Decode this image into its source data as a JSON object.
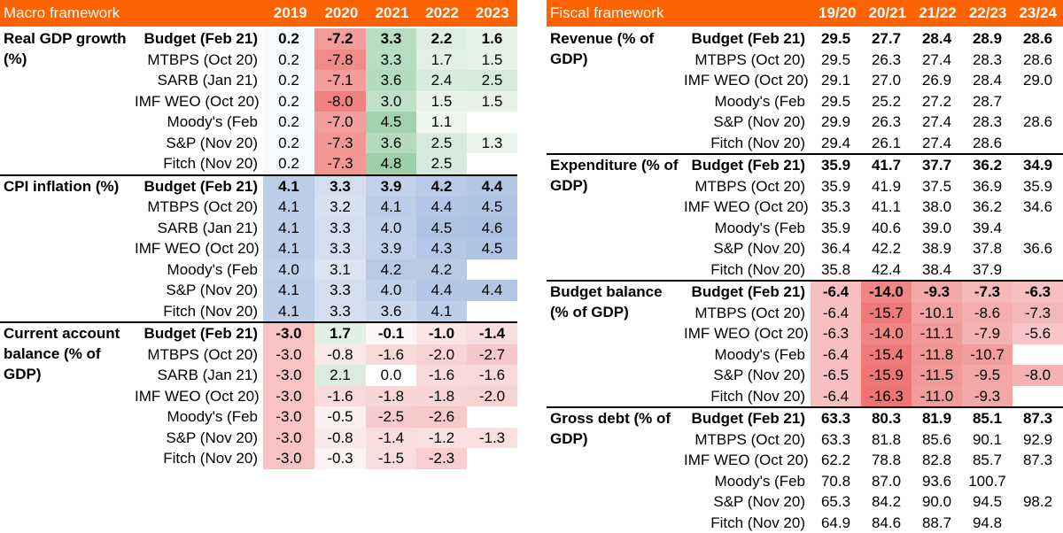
{
  "macro": {
    "title": "Macro framework",
    "years": [
      "2019",
      "2020",
      "2021",
      "2022",
      "2023"
    ],
    "sections": [
      {
        "label": "Real GDP growth (%)",
        "rows": [
          {
            "source": "Budget (Feb 21)",
            "values": [
              "0.2",
              "-7.2",
              "3.3",
              "2.2",
              "1.6"
            ],
            "colors": [
              "#f7fafd",
              "#f39a9a",
              "#b9ddc1",
              "#dbeedf",
              "#e5f2e8"
            ]
          },
          {
            "source": "MTBPS (Oct 20)",
            "values": [
              "0.2",
              "-7.8",
              "3.3",
              "1.7",
              "1.5"
            ],
            "colors": [
              "#f7fafd",
              "#f28a8a",
              "#b9ddc1",
              "#e2f1e6",
              "#e6f3e9"
            ]
          },
          {
            "source": "SARB (Jan 21)",
            "values": [
              "0.2",
              "-7.1",
              "3.6",
              "2.4",
              "2.5"
            ],
            "colors": [
              "#f7fafd",
              "#f39c9c",
              "#b4dbbd",
              "#d8ecdc",
              "#d6ebdb"
            ]
          },
          {
            "source": "IMF WEO (Oct 20)",
            "values": [
              "0.2",
              "-8.0",
              "3.0",
              "1.5",
              "1.5"
            ],
            "colors": [
              "#f7fafd",
              "#f18282",
              "#c0e1c8",
              "#e6f3e9",
              "#e6f3e9"
            ]
          },
          {
            "source": "Moody's (Feb",
            "values": [
              "0.2",
              "-7.0",
              "4.5",
              "1.1",
              ""
            ],
            "colors": [
              "#f7fafd",
              "#f39e9e",
              "#a3d3ae",
              "#edf6ef",
              "#ffffff"
            ]
          },
          {
            "source": "S&P (Nov 20)",
            "values": [
              "0.2",
              "-7.3",
              "3.6",
              "2.5",
              "1.3"
            ],
            "colors": [
              "#f7fafd",
              "#f39696",
              "#b4dbbd",
              "#d6ebdb",
              "#e9f4ec"
            ]
          },
          {
            "source": "Fitch (Nov 20)",
            "values": [
              "0.2",
              "-7.3",
              "4.8",
              "2.5",
              ""
            ],
            "colors": [
              "#f7fafd",
              "#f39696",
              "#9dd0a8",
              "#d6ebdb",
              "#ffffff"
            ]
          }
        ]
      },
      {
        "label": "CPI inflation (%)",
        "rows": [
          {
            "source": "Budget (Feb 21)",
            "values": [
              "4.1",
              "3.3",
              "3.9",
              "4.2",
              "4.4"
            ],
            "colors": [
              "#bccde8",
              "#d3def0",
              "#c2d1ea",
              "#b8cae6",
              "#b3c6e5"
            ]
          },
          {
            "source": "MTBPS (Oct 20)",
            "values": [
              "4.1",
              "3.2",
              "4.1",
              "4.4",
              "4.5"
            ],
            "colors": [
              "#bccde8",
              "#d6e1f1",
              "#bccde8",
              "#b3c6e5",
              "#afc3e3"
            ]
          },
          {
            "source": "SARB (Jan 21)",
            "values": [
              "4.1",
              "3.3",
              "4.0",
              "4.5",
              "4.6"
            ],
            "colors": [
              "#bccde8",
              "#d3def0",
              "#bfd0e9",
              "#afc3e3",
              "#abc0e2"
            ]
          },
          {
            "source": "IMF WEO (Oct 20)",
            "values": [
              "4.1",
              "3.3",
              "3.9",
              "4.3",
              "4.5"
            ],
            "colors": [
              "#bccde8",
              "#d3def0",
              "#c2d1ea",
              "#b5c8e6",
              "#afc3e3"
            ]
          },
          {
            "source": "Moody's (Feb",
            "values": [
              "4.0",
              "3.1",
              "4.2",
              "4.2",
              ""
            ],
            "colors": [
              "#bfd0e9",
              "#dae4f2",
              "#b8cae6",
              "#b8cae6",
              "#ffffff"
            ]
          },
          {
            "source": "S&P (Nov 20)",
            "values": [
              "4.1",
              "3.3",
              "4.0",
              "4.4",
              "4.4"
            ],
            "colors": [
              "#bccde8",
              "#d3def0",
              "#bfd0e9",
              "#b3c6e5",
              "#b3c6e5"
            ]
          },
          {
            "source": "Fitch (Nov 20)",
            "values": [
              "4.1",
              "3.3",
              "3.6",
              "4.1",
              ""
            ],
            "colors": [
              "#bccde8",
              "#d3def0",
              "#cad7ed",
              "#bccde8",
              "#ffffff"
            ]
          }
        ]
      },
      {
        "label": "Current account balance (% of GDP)",
        "rows": [
          {
            "source": "Budget (Feb 21)",
            "values": [
              "-3.0",
              "1.7",
              "-0.1",
              "-1.0",
              "-1.4"
            ],
            "colors": [
              "#f7c3c3",
              "#e1f0e4",
              "#fdf6f6",
              "#fae4e4",
              "#f9dede"
            ]
          },
          {
            "source": "MTBPS (Oct 20)",
            "values": [
              "-3.0",
              "-0.8",
              "-1.6",
              "-2.0",
              "-2.7"
            ],
            "colors": [
              "#f7c3c3",
              "#fbe8e8",
              "#f9dada",
              "#f8d3d3",
              "#f7c8c8"
            ]
          },
          {
            "source": "SARB (Jan 21)",
            "values": [
              "-3.0",
              "2.1",
              "0.0",
              "-1.6",
              "-1.6"
            ],
            "colors": [
              "#f7c3c3",
              "#d9ecdd",
              "#ffffff",
              "#f9dada",
              "#f9dada"
            ]
          },
          {
            "source": "IMF WEO (Oct 20)",
            "values": [
              "-3.0",
              "-1.6",
              "-1.8",
              "-1.8",
              "-2.0"
            ],
            "colors": [
              "#f7c3c3",
              "#f9dada",
              "#f8d6d6",
              "#f8d6d6",
              "#f8d3d3"
            ]
          },
          {
            "source": "Moody's (Feb",
            "values": [
              "-3.0",
              "-0.5",
              "-2.5",
              "-2.6",
              ""
            ],
            "colors": [
              "#f7c3c3",
              "#fcefef",
              "#f7cbcb",
              "#f7caca",
              "#ffffff"
            ]
          },
          {
            "source": "S&P (Nov 20)",
            "values": [
              "-3.0",
              "-0.8",
              "-1.4",
              "-1.2",
              "-1.3"
            ],
            "colors": [
              "#f7c3c3",
              "#fbe8e8",
              "#f9dede",
              "#f9e1e1",
              "#f9dfdf"
            ]
          },
          {
            "source": "Fitch (Nov 20)",
            "values": [
              "-3.0",
              "-0.3",
              "-1.5",
              "-2.3",
              ""
            ],
            "colors": [
              "#f7c3c3",
              "#fdf2f2",
              "#f9dcdc",
              "#f8cece",
              "#ffffff"
            ]
          }
        ]
      }
    ]
  },
  "fiscal": {
    "title": "Fiscal framework",
    "years": [
      "19/20",
      "20/21",
      "21/22",
      "22/23",
      "23/24"
    ],
    "sections": [
      {
        "label": "Revenue (% of GDP)",
        "rows": [
          {
            "source": "Budget (Feb 21)",
            "values": [
              "29.5",
              "27.7",
              "28.4",
              "28.9",
              "28.6"
            ]
          },
          {
            "source": "MTBPS (Oct 20)",
            "values": [
              "29.5",
              "26.3",
              "27.4",
              "28.3",
              "28.6"
            ]
          },
          {
            "source": "IMF WEO (Oct 20)",
            "values": [
              "29.1",
              "27.0",
              "26.9",
              "28.4",
              "29.0"
            ]
          },
          {
            "source": "Moody's (Feb",
            "values": [
              "29.5",
              "25.2",
              "27.2",
              "28.7",
              ""
            ]
          },
          {
            "source": "S&P (Nov 20)",
            "values": [
              "29.9",
              "26.3",
              "27.4",
              "28.3",
              "28.6"
            ]
          },
          {
            "source": "Fitch (Nov 20)",
            "values": [
              "29.4",
              "26.1",
              "27.4",
              "28.6",
              ""
            ]
          }
        ]
      },
      {
        "label": "Expenditure (% of GDP)",
        "rows": [
          {
            "source": "Budget (Feb 21)",
            "values": [
              "35.9",
              "41.7",
              "37.7",
              "36.2",
              "34.9"
            ]
          },
          {
            "source": "MTBPS (Oct 20)",
            "values": [
              "35.9",
              "41.9",
              "37.5",
              "36.9",
              "35.9"
            ]
          },
          {
            "source": "IMF WEO (Oct 20)",
            "values": [
              "35.3",
              "41.1",
              "38.0",
              "36.2",
              "34.6"
            ]
          },
          {
            "source": "Moody's (Feb",
            "values": [
              "35.9",
              "40.6",
              "39.0",
              "39.4",
              ""
            ]
          },
          {
            "source": "S&P (Nov 20)",
            "values": [
              "36.4",
              "42.2",
              "38.9",
              "37.8",
              "36.6"
            ]
          },
          {
            "source": "Fitch (Nov 20)",
            "values": [
              "35.8",
              "42.4",
              "38.4",
              "37.9",
              ""
            ]
          }
        ]
      },
      {
        "label": "Budget balance (% of GDP)",
        "rows": [
          {
            "source": "Budget (Feb 21)",
            "values": [
              "-6.4",
              "-14.0",
              "-9.3",
              "-7.3",
              "-6.3"
            ],
            "colors": [
              "#f7c0c0",
              "#f08585",
              "#f3a8a8",
              "#f5b8b8",
              "#f7c0c0"
            ]
          },
          {
            "source": "MTBPS (Oct 20)",
            "values": [
              "-6.4",
              "-15.7",
              "-10.1",
              "-8.6",
              "-7.3"
            ],
            "colors": [
              "#f7c0c0",
              "#ef7878",
              "#f2a2a2",
              "#f4aeae",
              "#f5b8b8"
            ]
          },
          {
            "source": "IMF WEO (Oct 20)",
            "values": [
              "-6.3",
              "-14.0",
              "-11.1",
              "-7.9",
              "-5.6"
            ],
            "colors": [
              "#f7c0c0",
              "#f08585",
              "#f29a9a",
              "#f4b3b3",
              "#f8c6c6"
            ]
          },
          {
            "source": "Moody's (Feb",
            "values": [
              "-6.4",
              "-15.4",
              "-11.8",
              "-10.7",
              ""
            ],
            "colors": [
              "#f7c0c0",
              "#ef7a7a",
              "#f19595",
              "#f29d9d",
              "#ffffff"
            ]
          },
          {
            "source": "S&P (Nov 20)",
            "values": [
              "-6.5",
              "-15.9",
              "-11.5",
              "-9.5",
              "-8.0"
            ],
            "colors": [
              "#f7bfbf",
              "#ef7676",
              "#f19898",
              "#f3a6a6",
              "#f4b2b2"
            ]
          },
          {
            "source": "Fitch (Nov 20)",
            "values": [
              "-6.4",
              "-16.3",
              "-11.0",
              "-9.3",
              ""
            ],
            "colors": [
              "#f7c0c0",
              "#ee7373",
              "#f29b9b",
              "#f3a8a8",
              "#ffffff"
            ]
          }
        ]
      },
      {
        "label": "Gross debt (% of GDP)",
        "rows": [
          {
            "source": "Budget (Feb 21)",
            "values": [
              "63.3",
              "80.3",
              "81.9",
              "85.1",
              "87.3"
            ]
          },
          {
            "source": "MTBPS (Oct 20)",
            "values": [
              "63.3",
              "81.8",
              "85.6",
              "90.1",
              "92.9"
            ]
          },
          {
            "source": "IMF WEO (Oct 20)",
            "values": [
              "62.2",
              "78.8",
              "82.8",
              "85.7",
              "87.3"
            ]
          },
          {
            "source": "Moody's (Feb",
            "values": [
              "70.8",
              "87.0",
              "93.6",
              "100.7",
              ""
            ]
          },
          {
            "source": "S&P (Nov 20)",
            "values": [
              "65.3",
              "84.2",
              "90.0",
              "94.5",
              "98.2"
            ]
          },
          {
            "source": "Fitch (Nov 20)",
            "values": [
              "64.9",
              "84.6",
              "88.7",
              "94.8",
              ""
            ]
          }
        ]
      }
    ]
  }
}
